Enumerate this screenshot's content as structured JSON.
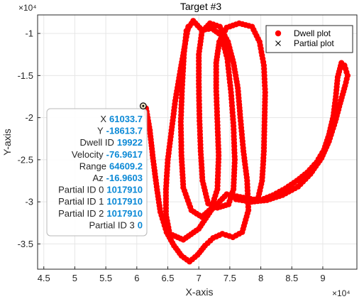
{
  "chart_data": {
    "type": "scatter",
    "title": "Target #3",
    "xlabel": "X-axis",
    "ylabel": "Y-axis",
    "x_exponent_label": "×10⁴",
    "y_exponent_label": "×10⁴",
    "xlim": [
      44000,
      95500
    ],
    "ylim": [
      -38000,
      -7800
    ],
    "x_ticks": [
      45000,
      50000,
      55000,
      60000,
      65000,
      70000,
      75000,
      80000,
      85000,
      90000
    ],
    "x_tick_labels": [
      "4.5",
      "5",
      "5.5",
      "6",
      "6.5",
      "7",
      "7.5",
      "8",
      "8.5",
      "9"
    ],
    "y_ticks": [
      -35000,
      -30000,
      -25000,
      -20000,
      -15000,
      -10000
    ],
    "y_tick_labels": [
      "-3.5",
      "-3",
      "-2.5",
      "-2",
      "-1.5",
      "-1"
    ],
    "grid": true,
    "legend_position": "top-right",
    "series": [
      {
        "name": "Dwell plot",
        "color": "#ff0000",
        "marker": "filled-circle",
        "paths": [
          [
            [
              61500,
              -18900
            ],
            [
              62100,
              -21500
            ],
            [
              62600,
              -24800
            ],
            [
              63200,
              -28200
            ],
            [
              63800,
              -31200
            ],
            [
              64800,
              -33600
            ],
            [
              66000,
              -35200
            ],
            [
              67200,
              -36400
            ],
            [
              68500,
              -37100
            ],
            [
              69800,
              -36300
            ],
            [
              71000,
              -35200
            ],
            [
              72300,
              -34300
            ],
            [
              73800,
              -33800
            ],
            [
              75500,
              -34200
            ],
            [
              77000,
              -33600
            ],
            [
              78000,
              -31000
            ],
            [
              77800,
              -27500
            ],
            [
              77200,
              -24000
            ],
            [
              76700,
              -20000
            ],
            [
              76300,
              -16500
            ],
            [
              75600,
              -13500
            ],
            [
              74700,
              -11000
            ],
            [
              73400,
              -9200
            ],
            [
              71800,
              -8800
            ],
            [
              70500,
              -9800
            ],
            [
              70000,
              -12500
            ],
            [
              70000,
              -16000
            ],
            [
              70100,
              -20000
            ],
            [
              70300,
              -24000
            ],
            [
              70600,
              -27500
            ],
            [
              71500,
              -30200
            ],
            [
              73000,
              -30700
            ],
            [
              74800,
              -30300
            ],
            [
              75600,
              -28500
            ],
            [
              75800,
              -25000
            ],
            [
              75600,
              -21000
            ],
            [
              75200,
              -17000
            ],
            [
              74600,
              -13000
            ],
            [
              73600,
              -10200
            ],
            [
              72100,
              -9400
            ],
            [
              70500,
              -9600
            ],
            [
              69100,
              -8500
            ],
            [
              68000,
              -9700
            ],
            [
              67600,
              -12500
            ],
            [
              67300,
              -16500
            ],
            [
              67100,
              -20500
            ],
            [
              67200,
              -24500
            ],
            [
              67500,
              -28300
            ],
            [
              68800,
              -31000
            ],
            [
              70500,
              -31800
            ],
            [
              72000,
              -30800
            ],
            [
              73000,
              -28500
            ],
            [
              73200,
              -24500
            ],
            [
              73000,
              -20500
            ],
            [
              72800,
              -16500
            ],
            [
              72800,
              -13500
            ],
            [
              73300,
              -11000
            ],
            [
              74500,
              -9300
            ],
            [
              76500,
              -8800
            ],
            [
              78600,
              -9200
            ],
            [
              79800,
              -11000
            ],
            [
              80500,
              -13800
            ],
            [
              80700,
              -17000
            ],
            [
              80600,
              -20500
            ],
            [
              80500,
              -24000
            ],
            [
              80200,
              -27500
            ],
            [
              79500,
              -29800
            ],
            [
              77200,
              -29500
            ],
            [
              74500,
              -29100
            ],
            [
              72000,
              -31000
            ],
            [
              70000,
              -33200
            ],
            [
              67500,
              -34500
            ],
            [
              65300,
              -33800
            ],
            [
              64700,
              -31500
            ],
            [
              64700,
              -28500
            ],
            [
              65000,
              -25000
            ],
            [
              65600,
              -21500
            ],
            [
              66200,
              -18000
            ],
            [
              67000,
              -14500
            ],
            [
              67800,
              -11200
            ],
            [
              68300,
              -9200
            ]
          ],
          [
            [
              76000,
              -29700
            ],
            [
              78500,
              -30000
            ],
            [
              81000,
              -29800
            ],
            [
              83500,
              -29200
            ],
            [
              86000,
              -28200
            ],
            [
              88000,
              -26700
            ],
            [
              89800,
              -24800
            ],
            [
              91000,
              -22800
            ],
            [
              92000,
              -20500
            ],
            [
              92800,
              -18300
            ],
            [
              93600,
              -16200
            ],
            [
              94000,
              -15000
            ],
            [
              93500,
              -13800
            ],
            [
              93000,
              -13500
            ],
            [
              92400,
              -15200
            ],
            [
              92100,
              -17500
            ],
            [
              91700,
              -19800
            ],
            [
              91000,
              -22000
            ],
            [
              90200,
              -23800
            ],
            [
              89000,
              -25300
            ],
            [
              87500,
              -26500
            ],
            [
              85800,
              -27500
            ],
            [
              84000,
              -28400
            ],
            [
              82000,
              -29200
            ],
            [
              80000,
              -29800
            ],
            [
              78000,
              -30000
            ]
          ]
        ]
      },
      {
        "name": "Partial plot",
        "color": "#000000",
        "marker": "x",
        "points": []
      }
    ],
    "datatip": {
      "x": 61033.7,
      "y": -18613.7,
      "rows": [
        {
          "key": "X",
          "value": "61033.7"
        },
        {
          "key": "Y",
          "value": "-18613.7"
        },
        {
          "key": "Dwell ID",
          "value": "19922"
        },
        {
          "key": "Velocity",
          "value": "-76.9617"
        },
        {
          "key": "Range",
          "value": "64609.2"
        },
        {
          "key": "Az",
          "value": "-16.9603"
        },
        {
          "key": "Partial ID 0",
          "value": "1017910"
        },
        {
          "key": "Partial ID 1",
          "value": "1017910"
        },
        {
          "key": "Partial ID 2",
          "value": "1017910"
        },
        {
          "key": "Partial ID 3",
          "value": "0"
        }
      ]
    }
  }
}
